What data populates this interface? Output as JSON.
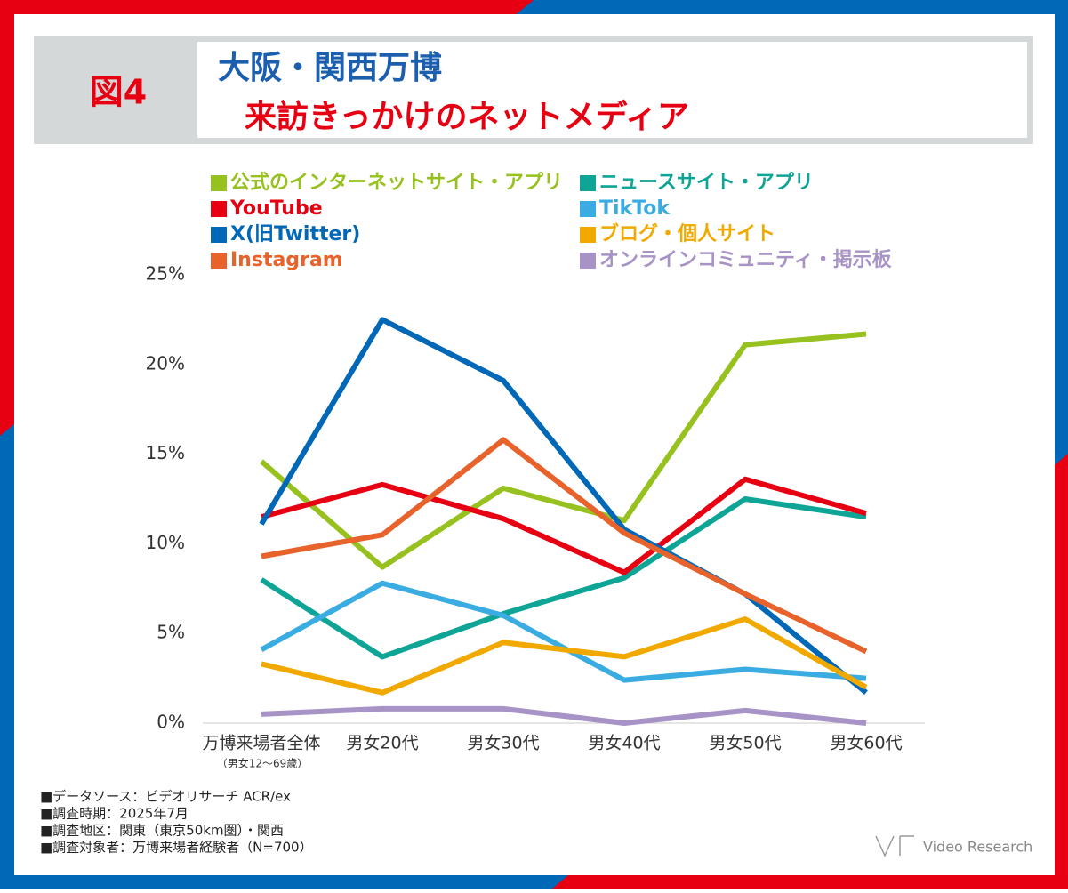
{
  "header": {
    "figure": "図4",
    "title_line1": "大阪・関西万博",
    "title_line2": "来訪きっかけのネットメディア"
  },
  "chart_data": {
    "type": "line",
    "categories": [
      "万博来場者全体",
      "男女20代",
      "男女30代",
      "男女40代",
      "男女50代",
      "男女60代"
    ],
    "category_note": "（男女12～69歳）",
    "series": [
      {
        "name": "公式のインターネットサイト・アプリ",
        "color": "#97c11f",
        "values": [
          14.6,
          8.7,
          13.1,
          11.3,
          21.1,
          21.7
        ]
      },
      {
        "name": "ニュースサイト・アプリ",
        "color": "#0fa596",
        "values": [
          8.0,
          3.7,
          6.1,
          8.1,
          12.5,
          11.5
        ]
      },
      {
        "name": "YouTube",
        "color": "#e60012",
        "values": [
          11.5,
          13.3,
          11.4,
          8.4,
          13.6,
          11.7
        ]
      },
      {
        "name": "TikTok",
        "color": "#3aace2",
        "values": [
          4.1,
          7.8,
          6.0,
          2.4,
          3.0,
          2.5
        ]
      },
      {
        "name": "X(旧Twitter)",
        "color": "#0068b6",
        "values": [
          11.1,
          22.5,
          19.1,
          10.8,
          7.2,
          1.7
        ]
      },
      {
        "name": "ブログ・個人サイト",
        "color": "#f1a900",
        "values": [
          3.3,
          1.7,
          4.5,
          3.7,
          5.8,
          2.0
        ]
      },
      {
        "name": "Instagram",
        "color": "#e8632b",
        "values": [
          9.3,
          10.5,
          15.8,
          10.6,
          7.2,
          4.0
        ]
      },
      {
        "name": "オンラインコミュニティ・掲示板",
        "color": "#a793c5",
        "values": [
          0.5,
          0.8,
          0.8,
          0,
          0.7,
          0
        ]
      }
    ],
    "ylim": [
      0,
      25
    ],
    "yticks": [
      {
        "value": 0,
        "label": "0%"
      },
      {
        "value": 5,
        "label": "5%"
      },
      {
        "value": 10,
        "label": "10%"
      },
      {
        "value": 15,
        "label": "15%"
      },
      {
        "value": 20,
        "label": "20%"
      },
      {
        "value": 25,
        "label": "25%"
      }
    ]
  },
  "notes": [
    "■データソース：ビデオリサーチ ACR/ex",
    "■調査時期：2025年7月",
    "■調査地区：関東（東京50km圏）・関西",
    "■調査対象者：万博来場者経験者（N=700）"
  ],
  "logo": "Video Research"
}
